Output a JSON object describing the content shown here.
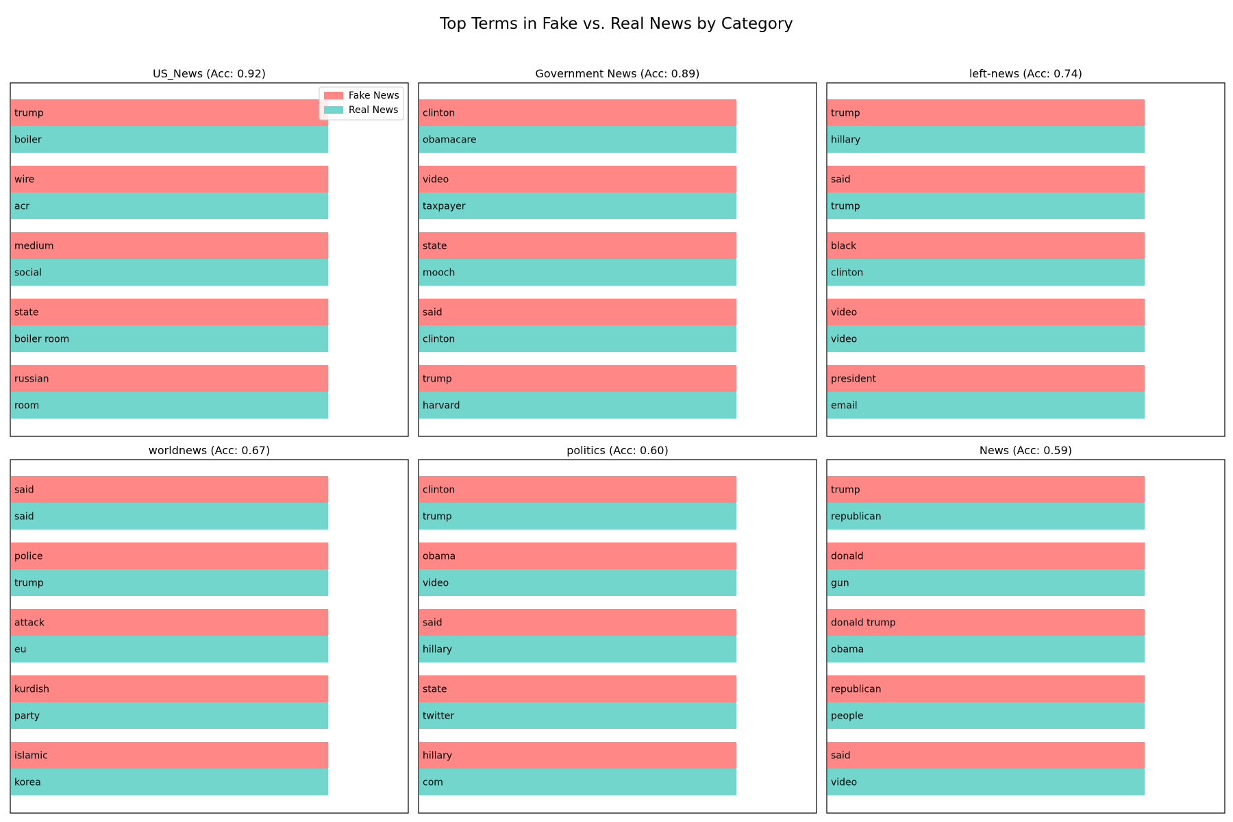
{
  "figure": {
    "title": "Top Terms in Fake vs. Real News by Category"
  },
  "legend": {
    "fake_label": "Fake News",
    "real_label": "Real News",
    "placement": "upper right of first panel"
  },
  "colors": {
    "fake": "#ff8785",
    "real": "#72d6cd",
    "axes": "#000000",
    "background": "#ffffff"
  },
  "chart_data": [
    {
      "type": "bar",
      "orientation": "horizontal",
      "title": "US_News (Acc: 0.92)",
      "grid": false,
      "series": [
        {
          "name": "Fake News",
          "terms": [
            "trump",
            "wire",
            "medium",
            "state",
            "russian"
          ],
          "values": [
            1,
            1,
            1,
            1,
            1
          ]
        },
        {
          "name": "Real News",
          "terms": [
            "boiler",
            "acr",
            "social",
            "boiler room",
            "room"
          ],
          "values": [
            1,
            1,
            1,
            1,
            1
          ]
        }
      ]
    },
    {
      "type": "bar",
      "orientation": "horizontal",
      "title": "Government News (Acc: 0.89)",
      "grid": false,
      "series": [
        {
          "name": "Fake News",
          "terms": [
            "clinton",
            "video",
            "state",
            "said",
            "trump"
          ],
          "values": [
            1,
            1,
            1,
            1,
            1
          ]
        },
        {
          "name": "Real News",
          "terms": [
            "obamacare",
            "taxpayer",
            "mooch",
            "clinton",
            "harvard"
          ],
          "values": [
            1,
            1,
            1,
            1,
            1
          ]
        }
      ]
    },
    {
      "type": "bar",
      "orientation": "horizontal",
      "title": "left-news (Acc: 0.74)",
      "grid": false,
      "series": [
        {
          "name": "Fake News",
          "terms": [
            "trump",
            "said",
            "black",
            "video",
            "president"
          ],
          "values": [
            1,
            1,
            1,
            1,
            1
          ]
        },
        {
          "name": "Real News",
          "terms": [
            "hillary",
            "trump",
            "clinton",
            "video",
            "email"
          ],
          "values": [
            1,
            1,
            1,
            1,
            1
          ]
        }
      ]
    },
    {
      "type": "bar",
      "orientation": "horizontal",
      "title": "worldnews (Acc: 0.67)",
      "grid": false,
      "series": [
        {
          "name": "Fake News",
          "terms": [
            "said",
            "police",
            "attack",
            "kurdish",
            "islamic"
          ],
          "values": [
            1,
            1,
            1,
            1,
            1
          ]
        },
        {
          "name": "Real News",
          "terms": [
            "said",
            "trump",
            "eu",
            "party",
            "korea"
          ],
          "values": [
            1,
            1,
            1,
            1,
            1
          ]
        }
      ]
    },
    {
      "type": "bar",
      "orientation": "horizontal",
      "title": "politics (Acc: 0.60)",
      "grid": false,
      "series": [
        {
          "name": "Fake News",
          "terms": [
            "clinton",
            "obama",
            "said",
            "state",
            "hillary"
          ],
          "values": [
            1,
            1,
            1,
            1,
            1
          ]
        },
        {
          "name": "Real News",
          "terms": [
            "trump",
            "video",
            "hillary",
            "twitter",
            "com"
          ],
          "values": [
            1,
            1,
            1,
            1,
            1
          ]
        }
      ]
    },
    {
      "type": "bar",
      "orientation": "horizontal",
      "title": "News (Acc: 0.59)",
      "grid": false,
      "series": [
        {
          "name": "Fake News",
          "terms": [
            "trump",
            "donald",
            "donald trump",
            "republican",
            "said"
          ],
          "values": [
            1,
            1,
            1,
            1,
            1
          ]
        },
        {
          "name": "Real News",
          "terms": [
            "republican",
            "gun",
            "obama",
            "people",
            "video"
          ],
          "values": [
            1,
            1,
            1,
            1,
            1
          ]
        }
      ]
    }
  ]
}
